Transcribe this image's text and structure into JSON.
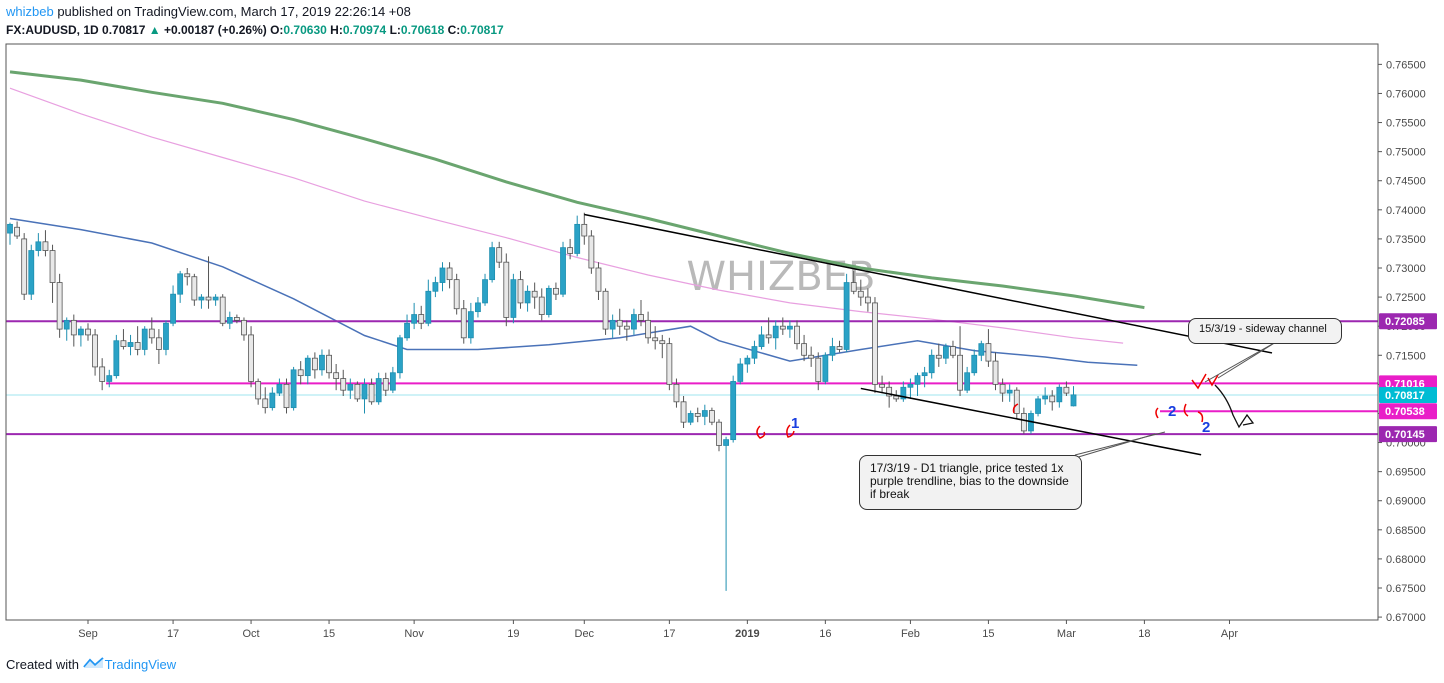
{
  "header": {
    "author": "whizbeb",
    "published": "published on TradingView.com, March 17, 2019 22:26:14 +08",
    "symbol": "FX:AUDUSD, 1D",
    "last": "0.70817",
    "change": "+0.00187 (+0.26%)",
    "o_label": "O:",
    "o": "0.70630",
    "h_label": "H:",
    "h": "0.70974",
    "l_label": "L:",
    "l": "0.70618",
    "c_label": "C:",
    "c": "0.70817"
  },
  "watermark": "WHIZBEB",
  "footer": {
    "prefix": "Created with",
    "brand": "TradingView"
  },
  "notes": {
    "sideway": "15/3/19 - sideway channel",
    "triangle": "17/3/19 - D1 triangle, price tested 1x purple trendline, bias to the downside if break"
  },
  "markers": {
    "one": "1",
    "two_a": "2",
    "two_b": "2"
  },
  "chart_data": {
    "type": "candlestick",
    "symbol": "FX:AUDUSD",
    "interval": "1D",
    "y_ticks": [
      "0.76500",
      "0.76000",
      "0.75500",
      "0.75000",
      "0.74500",
      "0.74000",
      "0.73500",
      "0.73000",
      "0.72500",
      "0.72000",
      "0.71500",
      "0.71000",
      "0.70500",
      "0.70000",
      "0.69500",
      "0.69000",
      "0.68500",
      "0.68000",
      "0.67500",
      "0.67000"
    ],
    "ylim": [
      0.6695,
      0.7685
    ],
    "x_ticks": [
      {
        "label": "Sep",
        "i": 11
      },
      {
        "label": "17",
        "i": 23
      },
      {
        "label": "Oct",
        "i": 34
      },
      {
        "label": "15",
        "i": 45
      },
      {
        "label": "Nov",
        "i": 57
      },
      {
        "label": "19",
        "i": 71
      },
      {
        "label": "Dec",
        "i": 81
      },
      {
        "label": "17",
        "i": 93
      },
      {
        "label": "2019",
        "i": 104,
        "bold": true
      },
      {
        "label": "16",
        "i": 115
      },
      {
        "label": "Feb",
        "i": 127
      },
      {
        "label": "15",
        "i": 138
      },
      {
        "label": "Mar",
        "i": 149
      },
      {
        "label": "18",
        "i": 160
      },
      {
        "label": "Apr",
        "i": 172
      }
    ],
    "price_levels": [
      {
        "label": "0.72085",
        "value": 0.72085,
        "color": "#9c27b0"
      },
      {
        "label": "0.71016",
        "value": 0.71016,
        "color": "#e91ec8"
      },
      {
        "label": "0.70817",
        "value": 0.70817,
        "color": "#00bcd4"
      },
      {
        "label": "0.70538",
        "value": 0.70538,
        "color": "#e91ec8"
      },
      {
        "label": "0.70145",
        "value": 0.70145,
        "color": "#9c27b0"
      }
    ],
    "moving_averages": [
      {
        "color": "#6aa56f",
        "points": [
          [
            0,
            0.7637
          ],
          [
            10,
            0.7623
          ],
          [
            20,
            0.7602
          ],
          [
            30,
            0.7583
          ],
          [
            40,
            0.7555
          ],
          [
            50,
            0.7522
          ],
          [
            60,
            0.7487
          ],
          [
            70,
            0.7448
          ],
          [
            80,
            0.7413
          ],
          [
            90,
            0.7385
          ],
          [
            100,
            0.7355
          ],
          [
            110,
            0.7325
          ],
          [
            120,
            0.73
          ],
          [
            130,
            0.7283
          ],
          [
            140,
            0.7269
          ],
          [
            150,
            0.7252
          ],
          [
            160,
            0.7232
          ]
        ]
      },
      {
        "color": "#e8a0e0",
        "points": [
          [
            0,
            0.7609
          ],
          [
            10,
            0.7565
          ],
          [
            20,
            0.7525
          ],
          [
            30,
            0.749
          ],
          [
            40,
            0.7455
          ],
          [
            50,
            0.7415
          ],
          [
            60,
            0.7383
          ],
          [
            70,
            0.7352
          ],
          [
            80,
            0.7318
          ],
          [
            90,
            0.7288
          ],
          [
            100,
            0.7262
          ],
          [
            110,
            0.724
          ],
          [
            120,
            0.7225
          ],
          [
            130,
            0.7212
          ],
          [
            140,
            0.7197
          ],
          [
            150,
            0.718
          ],
          [
            157,
            0.7171
          ]
        ]
      },
      {
        "color": "#4a72b8",
        "points": [
          [
            0,
            0.7385
          ],
          [
            10,
            0.7366
          ],
          [
            20,
            0.7343
          ],
          [
            30,
            0.7302
          ],
          [
            40,
            0.7247
          ],
          [
            50,
            0.7184
          ],
          [
            56,
            0.716
          ],
          [
            66,
            0.716
          ],
          [
            76,
            0.7168
          ],
          [
            86,
            0.718
          ],
          [
            96,
            0.72
          ],
          [
            100,
            0.7175
          ],
          [
            110,
            0.714
          ],
          [
            120,
            0.716
          ],
          [
            128,
            0.7175
          ],
          [
            136,
            0.7158
          ],
          [
            146,
            0.7147
          ],
          [
            152,
            0.7138
          ],
          [
            159,
            0.7133
          ]
        ]
      }
    ],
    "trendlines": [
      {
        "from": [
          81,
          0.7392
        ],
        "to": [
          178,
          0.7154
        ]
      },
      {
        "from": [
          120,
          0.7093
        ],
        "to": [
          168,
          0.6979
        ]
      }
    ],
    "candles": [
      [
        0.736,
        0.7378,
        0.734,
        0.7375
      ],
      [
        0.737,
        0.738,
        0.735,
        0.7355
      ],
      [
        0.735,
        0.736,
        0.7245,
        0.7255
      ],
      [
        0.7255,
        0.734,
        0.7245,
        0.733
      ],
      [
        0.733,
        0.736,
        0.732,
        0.7345
      ],
      [
        0.7345,
        0.7365,
        0.732,
        0.733
      ],
      [
        0.733,
        0.734,
        0.724,
        0.7275
      ],
      [
        0.7275,
        0.729,
        0.718,
        0.7195
      ],
      [
        0.7195,
        0.7215,
        0.7175,
        0.721
      ],
      [
        0.721,
        0.722,
        0.7165,
        0.7185
      ],
      [
        0.7185,
        0.72,
        0.7165,
        0.7195
      ],
      [
        0.7195,
        0.7205,
        0.7175,
        0.7185
      ],
      [
        0.7185,
        0.7195,
        0.7115,
        0.713
      ],
      [
        0.713,
        0.7145,
        0.709,
        0.7105
      ],
      [
        0.7105,
        0.7125,
        0.7095,
        0.7115
      ],
      [
        0.7115,
        0.7185,
        0.711,
        0.7175
      ],
      [
        0.7175,
        0.7195,
        0.716,
        0.7165
      ],
      [
        0.7165,
        0.7185,
        0.715,
        0.7172
      ],
      [
        0.7172,
        0.72,
        0.715,
        0.716
      ],
      [
        0.716,
        0.72,
        0.715,
        0.7195
      ],
      [
        0.7195,
        0.7215,
        0.717,
        0.718
      ],
      [
        0.718,
        0.7195,
        0.7135,
        0.716
      ],
      [
        0.716,
        0.721,
        0.715,
        0.7205
      ],
      [
        0.7205,
        0.727,
        0.72,
        0.7255
      ],
      [
        0.7255,
        0.7295,
        0.724,
        0.729
      ],
      [
        0.729,
        0.73,
        0.727,
        0.7285
      ],
      [
        0.7285,
        0.729,
        0.7235,
        0.7245
      ],
      [
        0.7245,
        0.7255,
        0.723,
        0.725
      ],
      [
        0.725,
        0.732,
        0.723,
        0.7245
      ],
      [
        0.7245,
        0.7255,
        0.7235,
        0.725
      ],
      [
        0.725,
        0.7255,
        0.72,
        0.7205
      ],
      [
        0.7205,
        0.7225,
        0.7195,
        0.7215
      ],
      [
        0.7215,
        0.722,
        0.7205,
        0.721
      ],
      [
        0.721,
        0.7215,
        0.7175,
        0.7185
      ],
      [
        0.7185,
        0.72,
        0.7095,
        0.7105
      ],
      [
        0.7105,
        0.711,
        0.7065,
        0.7075
      ],
      [
        0.7075,
        0.7095,
        0.705,
        0.706
      ],
      [
        0.706,
        0.7095,
        0.7055,
        0.7085
      ],
      [
        0.7085,
        0.711,
        0.708,
        0.71
      ],
      [
        0.71,
        0.711,
        0.705,
        0.706
      ],
      [
        0.706,
        0.713,
        0.7055,
        0.7125
      ],
      [
        0.7125,
        0.714,
        0.71,
        0.7115
      ],
      [
        0.7115,
        0.715,
        0.71,
        0.7145
      ],
      [
        0.7145,
        0.7155,
        0.711,
        0.7125
      ],
      [
        0.7125,
        0.716,
        0.7115,
        0.715
      ],
      [
        0.715,
        0.716,
        0.711,
        0.712
      ],
      [
        0.712,
        0.7135,
        0.709,
        0.711
      ],
      [
        0.711,
        0.7125,
        0.708,
        0.709
      ],
      [
        0.709,
        0.711,
        0.7075,
        0.71
      ],
      [
        0.71,
        0.7105,
        0.707,
        0.7075
      ],
      [
        0.7075,
        0.711,
        0.705,
        0.71
      ],
      [
        0.71,
        0.711,
        0.7065,
        0.707
      ],
      [
        0.707,
        0.712,
        0.7065,
        0.711
      ],
      [
        0.711,
        0.712,
        0.708,
        0.709
      ],
      [
        0.709,
        0.713,
        0.7085,
        0.712
      ],
      [
        0.712,
        0.7185,
        0.711,
        0.718
      ],
      [
        0.718,
        0.722,
        0.7175,
        0.7205
      ],
      [
        0.7205,
        0.724,
        0.7195,
        0.722
      ],
      [
        0.722,
        0.7235,
        0.7195,
        0.7205
      ],
      [
        0.7205,
        0.728,
        0.72,
        0.726
      ],
      [
        0.726,
        0.7285,
        0.725,
        0.7275
      ],
      [
        0.7275,
        0.731,
        0.726,
        0.73
      ],
      [
        0.73,
        0.731,
        0.7265,
        0.728
      ],
      [
        0.728,
        0.729,
        0.722,
        0.723
      ],
      [
        0.723,
        0.7245,
        0.717,
        0.718
      ],
      [
        0.718,
        0.724,
        0.717,
        0.7225
      ],
      [
        0.7225,
        0.725,
        0.7215,
        0.724
      ],
      [
        0.724,
        0.729,
        0.7235,
        0.728
      ],
      [
        0.728,
        0.7345,
        0.7275,
        0.7335
      ],
      [
        0.7335,
        0.7345,
        0.73,
        0.731
      ],
      [
        0.731,
        0.7325,
        0.72,
        0.7215
      ],
      [
        0.7215,
        0.729,
        0.7205,
        0.728
      ],
      [
        0.728,
        0.7295,
        0.723,
        0.724
      ],
      [
        0.724,
        0.727,
        0.7225,
        0.726
      ],
      [
        0.726,
        0.7275,
        0.723,
        0.725
      ],
      [
        0.725,
        0.7265,
        0.721,
        0.722
      ],
      [
        0.722,
        0.727,
        0.7215,
        0.7265
      ],
      [
        0.7265,
        0.7275,
        0.7245,
        0.7255
      ],
      [
        0.7255,
        0.7345,
        0.725,
        0.7335
      ],
      [
        0.7335,
        0.735,
        0.7315,
        0.7325
      ],
      [
        0.7325,
        0.739,
        0.732,
        0.7375
      ],
      [
        0.7375,
        0.7395,
        0.734,
        0.7355
      ],
      [
        0.7355,
        0.7365,
        0.729,
        0.73
      ],
      [
        0.73,
        0.731,
        0.7245,
        0.726
      ],
      [
        0.726,
        0.7265,
        0.7185,
        0.7195
      ],
      [
        0.7195,
        0.722,
        0.718,
        0.721
      ],
      [
        0.721,
        0.723,
        0.7185,
        0.72
      ],
      [
        0.72,
        0.721,
        0.7175,
        0.7195
      ],
      [
        0.7195,
        0.723,
        0.7185,
        0.722
      ],
      [
        0.722,
        0.7245,
        0.72,
        0.721
      ],
      [
        0.721,
        0.7225,
        0.717,
        0.718
      ],
      [
        0.718,
        0.72,
        0.716,
        0.7175
      ],
      [
        0.7175,
        0.7185,
        0.7145,
        0.717
      ],
      [
        0.717,
        0.718,
        0.709,
        0.71
      ],
      [
        0.71,
        0.711,
        0.706,
        0.707
      ],
      [
        0.707,
        0.708,
        0.7025,
        0.7035
      ],
      [
        0.7035,
        0.7055,
        0.703,
        0.705
      ],
      [
        0.705,
        0.706,
        0.7035,
        0.7045
      ],
      [
        0.7045,
        0.7065,
        0.703,
        0.7055
      ],
      [
        0.7055,
        0.706,
        0.703,
        0.7035
      ],
      [
        0.7035,
        0.704,
        0.6985,
        0.6995
      ],
      [
        0.6995,
        0.701,
        0.6745,
        0.7005
      ],
      [
        0.7005,
        0.7115,
        0.7,
        0.7105
      ],
      [
        0.7105,
        0.7145,
        0.71,
        0.7135
      ],
      [
        0.7135,
        0.715,
        0.712,
        0.7145
      ],
      [
        0.7145,
        0.7175,
        0.7135,
        0.7165
      ],
      [
        0.7165,
        0.72,
        0.716,
        0.7185
      ],
      [
        0.7185,
        0.7215,
        0.717,
        0.718
      ],
      [
        0.718,
        0.721,
        0.716,
        0.72
      ],
      [
        0.72,
        0.7215,
        0.7185,
        0.7195
      ],
      [
        0.7195,
        0.721,
        0.718,
        0.72
      ],
      [
        0.72,
        0.721,
        0.716,
        0.717
      ],
      [
        0.717,
        0.7185,
        0.714,
        0.715
      ],
      [
        0.715,
        0.7165,
        0.713,
        0.7145
      ],
      [
        0.7145,
        0.7155,
        0.709,
        0.7105
      ],
      [
        0.7105,
        0.7155,
        0.71,
        0.715
      ],
      [
        0.715,
        0.718,
        0.714,
        0.7165
      ],
      [
        0.7165,
        0.7175,
        0.7155,
        0.716
      ],
      [
        0.716,
        0.729,
        0.7155,
        0.7275
      ],
      [
        0.7275,
        0.7295,
        0.7255,
        0.726
      ],
      [
        0.726,
        0.728,
        0.7235,
        0.725
      ],
      [
        0.725,
        0.7265,
        0.7225,
        0.724
      ],
      [
        0.724,
        0.725,
        0.7085,
        0.71
      ],
      [
        0.71,
        0.7115,
        0.7085,
        0.7095
      ],
      [
        0.7095,
        0.7105,
        0.706,
        0.708
      ],
      [
        0.708,
        0.709,
        0.707,
        0.7075
      ],
      [
        0.7075,
        0.7105,
        0.707,
        0.7095
      ],
      [
        0.7095,
        0.711,
        0.7075,
        0.71
      ],
      [
        0.71,
        0.712,
        0.708,
        0.7115
      ],
      [
        0.7115,
        0.713,
        0.7095,
        0.712
      ],
      [
        0.712,
        0.716,
        0.711,
        0.715
      ],
      [
        0.715,
        0.717,
        0.713,
        0.7145
      ],
      [
        0.7145,
        0.717,
        0.7135,
        0.7165
      ],
      [
        0.7165,
        0.7175,
        0.7145,
        0.715
      ],
      [
        0.715,
        0.72,
        0.708,
        0.709
      ],
      [
        0.709,
        0.713,
        0.7085,
        0.712
      ],
      [
        0.712,
        0.716,
        0.7115,
        0.715
      ],
      [
        0.715,
        0.7175,
        0.714,
        0.717
      ],
      [
        0.717,
        0.7195,
        0.713,
        0.714
      ],
      [
        0.714,
        0.7155,
        0.709,
        0.71
      ],
      [
        0.71,
        0.711,
        0.707,
        0.7085
      ],
      [
        0.7085,
        0.71,
        0.707,
        0.709
      ],
      [
        0.709,
        0.7095,
        0.704,
        0.705
      ],
      [
        0.705,
        0.706,
        0.7015,
        0.702
      ],
      [
        0.702,
        0.7055,
        0.7015,
        0.705
      ],
      [
        0.705,
        0.708,
        0.7045,
        0.7075
      ],
      [
        0.7075,
        0.7095,
        0.7065,
        0.708
      ],
      [
        0.708,
        0.709,
        0.7055,
        0.707
      ],
      [
        0.707,
        0.71,
        0.706,
        0.7095
      ],
      [
        0.7095,
        0.7105,
        0.708,
        0.7085
      ],
      [
        0.7063,
        0.7097,
        0.7062,
        0.7082
      ]
    ]
  }
}
